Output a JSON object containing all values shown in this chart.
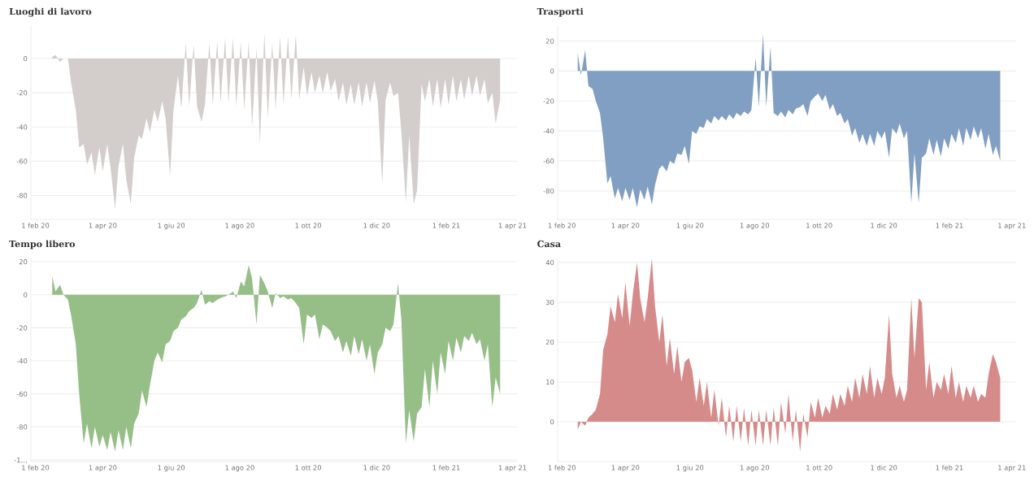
{
  "chart_data": [
    {
      "type": "area",
      "title": "Luoghi di lavoro",
      "grid": "y",
      "x": [
        "2020-02-16",
        "2020-02-19",
        "2020-02-23",
        "2020-02-26",
        "2020-03-01",
        "2020-03-04",
        "2020-03-08",
        "2020-03-11",
        "2020-03-15",
        "2020-03-18",
        "2020-03-22",
        "2020-03-25",
        "2020-03-29",
        "2020-04-01",
        "2020-04-05",
        "2020-04-08",
        "2020-04-12",
        "2020-04-15",
        "2020-04-19",
        "2020-04-22",
        "2020-04-26",
        "2020-04-29",
        "2020-05-03",
        "2020-05-06",
        "2020-05-10",
        "2020-05-13",
        "2020-05-17",
        "2020-05-20",
        "2020-05-24",
        "2020-05-27",
        "2020-05-31",
        "2020-06-03",
        "2020-06-07",
        "2020-06-10",
        "2020-06-14",
        "2020-06-17",
        "2020-06-21",
        "2020-06-24",
        "2020-06-28",
        "2020-07-01",
        "2020-07-05",
        "2020-07-08",
        "2020-07-12",
        "2020-07-15",
        "2020-07-19",
        "2020-07-22",
        "2020-07-26",
        "2020-07-29",
        "2020-08-02",
        "2020-08-05",
        "2020-08-09",
        "2020-08-12",
        "2020-08-16",
        "2020-08-19",
        "2020-08-23",
        "2020-08-26",
        "2020-08-30",
        "2020-09-02",
        "2020-09-06",
        "2020-09-09",
        "2020-09-13",
        "2020-09-16",
        "2020-09-20",
        "2020-09-23",
        "2020-09-27",
        "2020-09-30",
        "2020-10-04",
        "2020-10-07",
        "2020-10-11",
        "2020-10-14",
        "2020-10-18",
        "2020-10-21",
        "2020-10-25",
        "2020-10-28",
        "2020-11-01",
        "2020-11-04",
        "2020-11-08",
        "2020-11-11",
        "2020-11-15",
        "2020-11-18",
        "2020-11-22",
        "2020-11-25",
        "2020-11-29",
        "2020-12-02",
        "2020-12-06",
        "2020-12-09",
        "2020-12-13",
        "2020-12-16",
        "2020-12-20",
        "2020-12-23",
        "2020-12-27",
        "2020-12-30",
        "2021-01-03",
        "2021-01-06",
        "2021-01-10",
        "2021-01-13",
        "2021-01-17",
        "2021-01-20",
        "2021-01-24",
        "2021-01-27",
        "2021-01-31",
        "2021-02-03",
        "2021-02-07",
        "2021-02-10",
        "2021-02-14",
        "2021-02-17",
        "2021-02-21",
        "2021-02-24",
        "2021-02-28",
        "2021-03-03",
        "2021-03-07",
        "2021-03-10",
        "2021-03-14",
        "2021-03-17",
        "2021-03-21"
      ],
      "series": [
        {
          "color": "#d3cecb",
          "values": [
            1,
            2,
            -2,
            0,
            0,
            -15,
            -30,
            -52,
            -50,
            -62,
            -55,
            -68,
            -52,
            -66,
            -50,
            -64,
            -88,
            -63,
            -50,
            -71,
            -85,
            -58,
            -45,
            -47,
            -35,
            -43,
            -30,
            -37,
            -25,
            -35,
            -69,
            -30,
            -10,
            -29,
            9,
            -28,
            8,
            -28,
            -37,
            -27,
            9,
            -27,
            10,
            -26,
            12,
            -26,
            12,
            -28,
            10,
            -30,
            10,
            -40,
            6,
            -50,
            15,
            -35,
            9,
            -30,
            13,
            -27,
            13,
            -24,
            14,
            -24,
            -5,
            -22,
            -8,
            -20,
            -10,
            -20,
            -8,
            -19,
            -12,
            -25,
            -14,
            -27,
            -15,
            -27,
            -14,
            -28,
            -14,
            -26,
            -13,
            -25,
            -73,
            -24,
            -14,
            -22,
            -20,
            -43,
            -84,
            -45,
            -85,
            -77,
            -15,
            -25,
            -12,
            -28,
            -12,
            -29,
            -12,
            -27,
            -10,
            -25,
            -12,
            -24,
            -10,
            -22,
            -10,
            -22,
            -12,
            -26,
            -20,
            -38,
            -24
          ]
        }
      ],
      "xlim": [
        "2020-01-28",
        "2021-04-05"
      ],
      "xticks": [
        {
          "value": "2020-02-01",
          "label": "1 feb 20"
        },
        {
          "value": "2020-04-01",
          "label": "1 apr 20"
        },
        {
          "value": "2020-06-01",
          "label": "1 giu 20"
        },
        {
          "value": "2020-08-01",
          "label": "1 ago 20"
        },
        {
          "value": "2020-10-01",
          "label": "1 ott 20"
        },
        {
          "value": "2020-12-01",
          "label": "1 dic 20"
        },
        {
          "value": "2021-02-01",
          "label": "1 feb 21"
        },
        {
          "value": "2021-04-01",
          "label": "1 apr 21"
        }
      ],
      "ylim": [
        -94,
        19
      ],
      "yticks": [
        -80,
        -60,
        -40,
        -20,
        0
      ]
    },
    {
      "type": "area",
      "title": "Trasporti",
      "grid": "y",
      "x": [
        "2020-02-16",
        "2020-02-19",
        "2020-02-23",
        "2020-02-26",
        "2020-03-01",
        "2020-03-04",
        "2020-03-08",
        "2020-03-11",
        "2020-03-15",
        "2020-03-18",
        "2020-03-22",
        "2020-03-25",
        "2020-03-29",
        "2020-04-01",
        "2020-04-05",
        "2020-04-08",
        "2020-04-12",
        "2020-04-15",
        "2020-04-19",
        "2020-04-22",
        "2020-04-26",
        "2020-04-29",
        "2020-05-03",
        "2020-05-06",
        "2020-05-10",
        "2020-05-13",
        "2020-05-17",
        "2020-05-20",
        "2020-05-24",
        "2020-05-27",
        "2020-05-31",
        "2020-06-03",
        "2020-06-07",
        "2020-06-10",
        "2020-06-14",
        "2020-06-17",
        "2020-06-21",
        "2020-06-24",
        "2020-06-28",
        "2020-07-01",
        "2020-07-05",
        "2020-07-08",
        "2020-07-12",
        "2020-07-15",
        "2020-07-19",
        "2020-07-22",
        "2020-07-26",
        "2020-07-29",
        "2020-08-02",
        "2020-08-05",
        "2020-08-09",
        "2020-08-12",
        "2020-08-16",
        "2020-08-19",
        "2020-08-23",
        "2020-08-26",
        "2020-08-30",
        "2020-09-02",
        "2020-09-06",
        "2020-09-09",
        "2020-09-13",
        "2020-09-16",
        "2020-09-20",
        "2020-09-23",
        "2020-09-27",
        "2020-09-30",
        "2020-10-04",
        "2020-10-07",
        "2020-10-11",
        "2020-10-14",
        "2020-10-18",
        "2020-10-21",
        "2020-10-25",
        "2020-10-28",
        "2020-11-01",
        "2020-11-04",
        "2020-11-08",
        "2020-11-11",
        "2020-11-15",
        "2020-11-18",
        "2020-11-22",
        "2020-11-25",
        "2020-11-29",
        "2020-12-02",
        "2020-12-06",
        "2020-12-09",
        "2020-12-13",
        "2020-12-16",
        "2020-12-20",
        "2020-12-23",
        "2020-12-27",
        "2020-12-30",
        "2021-01-03",
        "2021-01-06",
        "2021-01-10",
        "2021-01-13",
        "2021-01-17",
        "2021-01-20",
        "2021-01-24",
        "2021-01-27",
        "2021-01-31",
        "2021-02-03",
        "2021-02-07",
        "2021-02-10",
        "2021-02-14",
        "2021-02-17",
        "2021-02-21",
        "2021-02-24",
        "2021-02-28",
        "2021-03-03",
        "2021-03-07",
        "2021-03-10",
        "2021-03-14",
        "2021-03-17",
        "2021-03-21"
      ],
      "series": [
        {
          "color": "#819fc2",
          "values": [
            12,
            -3,
            14,
            -10,
            -12,
            -20,
            -28,
            -45,
            -75,
            -70,
            -85,
            -78,
            -87,
            -78,
            -86,
            -78,
            -91,
            -79,
            -86,
            -77,
            -89,
            -76,
            -65,
            -63,
            -67,
            -60,
            -62,
            -55,
            -56,
            -50,
            -62,
            -40,
            -42,
            -37,
            -38,
            -32,
            -35,
            -30,
            -33,
            -30,
            -33,
            -29,
            -32,
            -28,
            -30,
            -27,
            -29,
            -26,
            9,
            -24,
            25,
            -24,
            16,
            -28,
            -30,
            -27,
            -31,
            -26,
            -29,
            -25,
            -24,
            -22,
            -30,
            -20,
            -17,
            -15,
            -20,
            -16,
            -26,
            -22,
            -30,
            -28,
            -35,
            -32,
            -43,
            -38,
            -48,
            -42,
            -50,
            -42,
            -50,
            -40,
            -45,
            -40,
            -58,
            -38,
            -42,
            -35,
            -45,
            -40,
            -88,
            -55,
            -88,
            -58,
            -55,
            -45,
            -56,
            -46,
            -57,
            -45,
            -52,
            -42,
            -48,
            -38,
            -50,
            -38,
            -46,
            -37,
            -45,
            -38,
            -52,
            -42,
            -56,
            -50,
            -60
          ]
        }
      ],
      "xlim": [
        "2020-01-28",
        "2021-04-05"
      ],
      "xticks": [
        {
          "value": "2020-02-01",
          "label": "1 feb 20"
        },
        {
          "value": "2020-04-01",
          "label": "1 apr 20"
        },
        {
          "value": "2020-06-01",
          "label": "1 giu 20"
        },
        {
          "value": "2020-08-01",
          "label": "1 ago 20"
        },
        {
          "value": "2020-10-01",
          "label": "1 ott 20"
        },
        {
          "value": "2020-12-01",
          "label": "1 dic 20"
        },
        {
          "value": "2021-02-01",
          "label": "1 feb 21"
        },
        {
          "value": "2021-04-01",
          "label": "1 apr 21"
        }
      ],
      "ylim": [
        -99,
        30
      ],
      "yticks": [
        -80,
        -60,
        -40,
        -20,
        0,
        20
      ]
    },
    {
      "type": "area",
      "title": "Tempo libero",
      "grid": "y",
      "x": [
        "2020-02-16",
        "2020-02-19",
        "2020-02-23",
        "2020-02-26",
        "2020-03-01",
        "2020-03-04",
        "2020-03-08",
        "2020-03-11",
        "2020-03-15",
        "2020-03-18",
        "2020-03-22",
        "2020-03-25",
        "2020-03-29",
        "2020-04-01",
        "2020-04-05",
        "2020-04-08",
        "2020-04-12",
        "2020-04-15",
        "2020-04-19",
        "2020-04-22",
        "2020-04-26",
        "2020-04-29",
        "2020-05-03",
        "2020-05-06",
        "2020-05-10",
        "2020-05-13",
        "2020-05-17",
        "2020-05-20",
        "2020-05-24",
        "2020-05-27",
        "2020-05-31",
        "2020-06-03",
        "2020-06-07",
        "2020-06-10",
        "2020-06-14",
        "2020-06-17",
        "2020-06-21",
        "2020-06-24",
        "2020-06-28",
        "2020-07-01",
        "2020-07-05",
        "2020-07-08",
        "2020-07-12",
        "2020-07-15",
        "2020-07-19",
        "2020-07-22",
        "2020-07-26",
        "2020-07-29",
        "2020-08-02",
        "2020-08-05",
        "2020-08-09",
        "2020-08-12",
        "2020-08-16",
        "2020-08-19",
        "2020-08-23",
        "2020-08-26",
        "2020-08-30",
        "2020-09-02",
        "2020-09-06",
        "2020-09-09",
        "2020-09-13",
        "2020-09-16",
        "2020-09-20",
        "2020-09-23",
        "2020-09-27",
        "2020-09-30",
        "2020-10-04",
        "2020-10-07",
        "2020-10-11",
        "2020-10-14",
        "2020-10-18",
        "2020-10-21",
        "2020-10-25",
        "2020-10-28",
        "2020-11-01",
        "2020-11-04",
        "2020-11-08",
        "2020-11-11",
        "2020-11-15",
        "2020-11-18",
        "2020-11-22",
        "2020-11-25",
        "2020-11-29",
        "2020-12-02",
        "2020-12-06",
        "2020-12-09",
        "2020-12-13",
        "2020-12-16",
        "2020-12-20",
        "2020-12-23",
        "2020-12-27",
        "2020-12-30",
        "2021-01-03",
        "2021-01-06",
        "2021-01-10",
        "2021-01-13",
        "2021-01-17",
        "2021-01-20",
        "2021-01-24",
        "2021-01-27",
        "2021-01-31",
        "2021-02-03",
        "2021-02-07",
        "2021-02-10",
        "2021-02-14",
        "2021-02-17",
        "2021-02-21",
        "2021-02-24",
        "2021-02-28",
        "2021-03-03",
        "2021-03-07",
        "2021-03-10",
        "2021-03-14",
        "2021-03-17",
        "2021-03-21"
      ],
      "series": [
        {
          "color": "#96bf88",
          "values": [
            11,
            2,
            6,
            0,
            -3,
            -13,
            -30,
            -60,
            -90,
            -78,
            -93,
            -80,
            -92,
            -85,
            -94,
            -83,
            -95,
            -82,
            -94,
            -80,
            -93,
            -78,
            -72,
            -58,
            -68,
            -55,
            -40,
            -35,
            -41,
            -30,
            -28,
            -22,
            -20,
            -15,
            -13,
            -10,
            -8,
            -5,
            3,
            -6,
            -4,
            -5,
            -3,
            -2,
            -1,
            0,
            2,
            -2,
            8,
            5,
            18,
            10,
            -18,
            12,
            7,
            2,
            -8,
            1,
            -2,
            -1,
            -3,
            -2,
            -5,
            -8,
            -30,
            -12,
            -14,
            -12,
            -27,
            -18,
            -20,
            -22,
            -28,
            -25,
            -35,
            -28,
            -37,
            -25,
            -36,
            -27,
            -40,
            -30,
            -48,
            -35,
            -30,
            -20,
            -22,
            -18,
            7,
            -15,
            -90,
            -70,
            -89,
            -72,
            -68,
            -45,
            -68,
            -40,
            -60,
            -35,
            -48,
            -28,
            -40,
            -26,
            -35,
            -25,
            -28,
            -23,
            -30,
            -27,
            -40,
            -30,
            -68,
            -50,
            -60
          ]
        }
      ],
      "xlim": [
        "2020-01-28",
        "2021-04-05"
      ],
      "xticks": [
        {
          "value": "2020-02-01",
          "label": "1 feb 20"
        },
        {
          "value": "2020-04-01",
          "label": "1 apr 20"
        },
        {
          "value": "2020-06-01",
          "label": "1 giu 20"
        },
        {
          "value": "2020-08-01",
          "label": "1 ago 20"
        },
        {
          "value": "2020-10-01",
          "label": "1 ott 20"
        },
        {
          "value": "2020-12-01",
          "label": "1 dic 20"
        },
        {
          "value": "2021-02-01",
          "label": "1 feb 21"
        },
        {
          "value": "2021-04-01",
          "label": "1 apr 21"
        }
      ],
      "ylim": [
        -101,
        22
      ],
      "yticks": [
        {
          "value": -100,
          "label": "-1…"
        },
        -80,
        -60,
        -40,
        -20,
        0,
        20
      ]
    },
    {
      "type": "area",
      "title": "Casa",
      "grid": "y",
      "x": [
        "2020-02-16",
        "2020-02-19",
        "2020-02-23",
        "2020-02-26",
        "2020-03-01",
        "2020-03-04",
        "2020-03-08",
        "2020-03-11",
        "2020-03-15",
        "2020-03-18",
        "2020-03-22",
        "2020-03-25",
        "2020-03-29",
        "2020-04-01",
        "2020-04-05",
        "2020-04-08",
        "2020-04-12",
        "2020-04-15",
        "2020-04-19",
        "2020-04-22",
        "2020-04-26",
        "2020-04-29",
        "2020-05-03",
        "2020-05-06",
        "2020-05-10",
        "2020-05-13",
        "2020-05-17",
        "2020-05-20",
        "2020-05-24",
        "2020-05-27",
        "2020-05-31",
        "2020-06-03",
        "2020-06-07",
        "2020-06-10",
        "2020-06-14",
        "2020-06-17",
        "2020-06-21",
        "2020-06-24",
        "2020-06-28",
        "2020-07-01",
        "2020-07-05",
        "2020-07-08",
        "2020-07-12",
        "2020-07-15",
        "2020-07-19",
        "2020-07-22",
        "2020-07-26",
        "2020-07-29",
        "2020-08-02",
        "2020-08-05",
        "2020-08-09",
        "2020-08-12",
        "2020-08-16",
        "2020-08-19",
        "2020-08-23",
        "2020-08-26",
        "2020-08-30",
        "2020-09-02",
        "2020-09-06",
        "2020-09-09",
        "2020-09-13",
        "2020-09-16",
        "2020-09-20",
        "2020-09-23",
        "2020-09-27",
        "2020-09-30",
        "2020-10-04",
        "2020-10-07",
        "2020-10-11",
        "2020-10-14",
        "2020-10-18",
        "2020-10-21",
        "2020-10-25",
        "2020-10-28",
        "2020-11-01",
        "2020-11-04",
        "2020-11-08",
        "2020-11-11",
        "2020-11-15",
        "2020-11-18",
        "2020-11-22",
        "2020-11-25",
        "2020-11-29",
        "2020-12-02",
        "2020-12-06",
        "2020-12-09",
        "2020-12-13",
        "2020-12-16",
        "2020-12-20",
        "2020-12-23",
        "2020-12-27",
        "2020-12-30",
        "2021-01-03",
        "2021-01-06",
        "2021-01-10",
        "2021-01-13",
        "2021-01-17",
        "2021-01-20",
        "2021-01-24",
        "2021-01-27",
        "2021-01-31",
        "2021-02-03",
        "2021-02-07",
        "2021-02-10",
        "2021-02-14",
        "2021-02-17",
        "2021-02-21",
        "2021-02-24",
        "2021-02-28",
        "2021-03-03",
        "2021-03-07",
        "2021-03-10",
        "2021-03-14",
        "2021-03-17",
        "2021-03-21"
      ],
      "series": [
        {
          "color": "#d68b8b",
          "values": [
            -2,
            0,
            -1,
            1,
            2,
            3,
            7,
            18,
            22,
            29,
            25,
            32,
            26,
            35,
            24,
            32,
            40,
            31,
            25,
            31,
            41,
            29,
            20,
            27,
            14,
            21,
            12,
            19,
            10,
            15,
            16,
            13,
            5,
            11,
            4,
            10,
            1,
            8,
            -1,
            6,
            -4,
            4,
            -5,
            4,
            -5,
            3.5,
            -6,
            3,
            -6,
            3,
            -6,
            3,
            -6,
            3.5,
            -6,
            5,
            -3,
            7,
            -5,
            3,
            -7.5,
            2,
            -4,
            5,
            1,
            6,
            1,
            4,
            2,
            7,
            3,
            7,
            4,
            9,
            5,
            11,
            6,
            12,
            7,
            14,
            6,
            11,
            7,
            11,
            27,
            12,
            6,
            9,
            5,
            8,
            31,
            16,
            31,
            30,
            8,
            15,
            6,
            10,
            8,
            12,
            7,
            14,
            6,
            10,
            5,
            9,
            6,
            9,
            5,
            7,
            6,
            12,
            17,
            15,
            11
          ]
        }
      ],
      "xlim": [
        "2020-01-28",
        "2021-04-05"
      ],
      "xticks": [
        {
          "value": "2020-02-01",
          "label": "1 feb 20"
        },
        {
          "value": "2020-04-01",
          "label": "1 apr 20"
        },
        {
          "value": "2020-06-01",
          "label": "1 giu 20"
        },
        {
          "value": "2020-08-01",
          "label": "1 ago 20"
        },
        {
          "value": "2020-10-01",
          "label": "1 ott 20"
        },
        {
          "value": "2020-12-01",
          "label": "1 dic 20"
        },
        {
          "value": "2021-02-01",
          "label": "1 feb 21"
        },
        {
          "value": "2021-04-01",
          "label": "1 apr 21"
        }
      ],
      "ylim": [
        -10,
        41
      ],
      "yticks": [
        0,
        10,
        20,
        30,
        40
      ]
    }
  ]
}
